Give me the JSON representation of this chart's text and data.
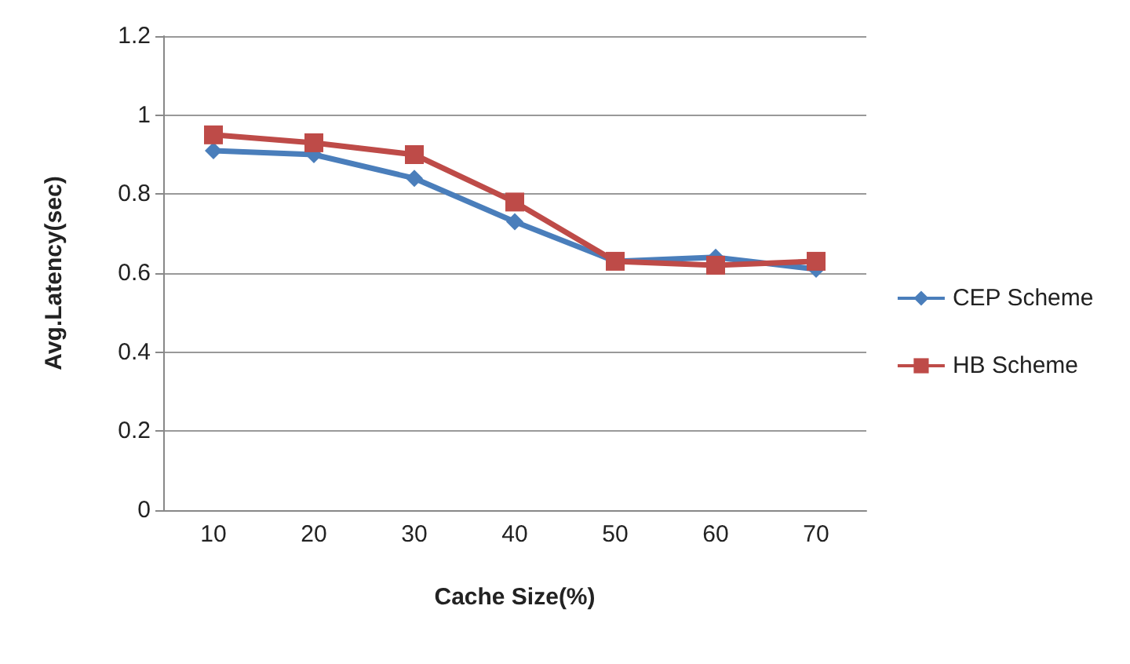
{
  "chart_data": {
    "type": "line",
    "xlabel": "Cache Size(%)",
    "ylabel": "Avg.Latency(sec)",
    "categories": [
      "10",
      "20",
      "30",
      "40",
      "50",
      "60",
      "70"
    ],
    "series": [
      {
        "name": "CEP Scheme",
        "color": "#4a7ebb",
        "marker": "diamond",
        "values": [
          0.91,
          0.9,
          0.84,
          0.73,
          0.63,
          0.64,
          0.61
        ]
      },
      {
        "name": "HB Scheme",
        "color": "#be4b48",
        "marker": "square",
        "values": [
          0.95,
          0.93,
          0.9,
          0.78,
          0.63,
          0.62,
          0.63
        ]
      }
    ],
    "ylim": [
      0,
      1.2
    ],
    "yticks": [
      0,
      0.2,
      0.4,
      0.6,
      0.8,
      1,
      1.2
    ],
    "grid": "y",
    "legend": "right"
  }
}
